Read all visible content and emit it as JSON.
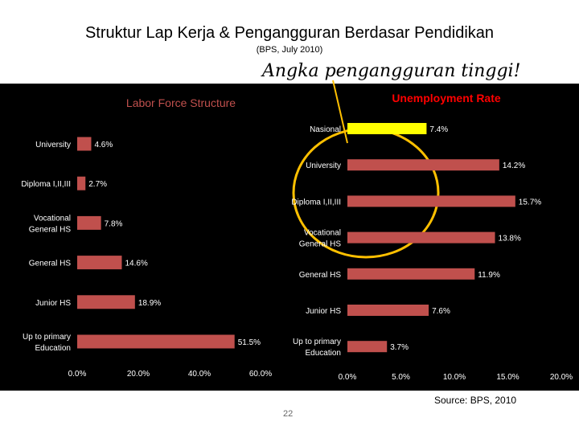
{
  "header": {
    "title": "Struktur Lap Kerja & Pengangguran Berdasar Pendidikan",
    "subtitle": "(BPS, July 2010)",
    "callout": "Angka pengangguran tinggi!"
  },
  "footer": {
    "source": "Source: BPS, 2010",
    "page_number": "22"
  },
  "colors": {
    "bar": "#c0504d",
    "highlight": "#ffff00",
    "panel": "#000000",
    "labor_title": "#c0504d",
    "unemp_title": "#ff0000",
    "circle": "#ffc000"
  },
  "chart_data": [
    {
      "type": "bar",
      "orientation": "horizontal",
      "title": "Labor Force Structure",
      "categories": [
        "University",
        "Diploma I,II,III",
        "Vocational General HS",
        "General HS",
        "Junior HS",
        "Up to primary Education"
      ],
      "category_lines": [
        [
          "University"
        ],
        [
          "Diploma I,II,III"
        ],
        [
          "Vocational",
          "General HS"
        ],
        [
          "General HS"
        ],
        [
          "Junior HS"
        ],
        [
          "Up to primary",
          "Education"
        ]
      ],
      "values": [
        4.6,
        2.7,
        7.8,
        14.6,
        18.9,
        51.5
      ],
      "value_labels": [
        "4.6%",
        "2.7%",
        "7.8%",
        "14.6%",
        "18.9%",
        "51.5%"
      ],
      "xlim": [
        0,
        60
      ],
      "ticks": [
        0,
        20,
        40,
        60
      ],
      "tick_labels": [
        "0.0%",
        "20.0%",
        "40.0%",
        "60.0%"
      ]
    },
    {
      "type": "bar",
      "orientation": "horizontal",
      "title": "Unemployment Rate",
      "categories": [
        "Nasional",
        "University",
        "Diploma I,II,III",
        "Vocational General HS",
        "General HS",
        "Junior HS",
        "Up to primary Education"
      ],
      "category_lines": [
        [
          "Nasional"
        ],
        [
          "University"
        ],
        [
          "Diploma I,II,III"
        ],
        [
          "Vocational",
          "General HS"
        ],
        [
          "General HS"
        ],
        [
          "Junior HS"
        ],
        [
          "Up to primary",
          "Education"
        ]
      ],
      "values": [
        7.4,
        14.2,
        15.7,
        13.8,
        11.9,
        7.6,
        3.7
      ],
      "value_labels": [
        "7.4%",
        "14.2%",
        "15.7%",
        "13.8%",
        "11.9%",
        "7.6%",
        "3.7%"
      ],
      "highlight_index": 0,
      "xlim": [
        0,
        20
      ],
      "ticks": [
        0,
        5,
        10,
        15,
        20
      ],
      "tick_labels": [
        "0.0%",
        "5.0%",
        "10.0%",
        "15.0%",
        "20.0%"
      ]
    }
  ]
}
